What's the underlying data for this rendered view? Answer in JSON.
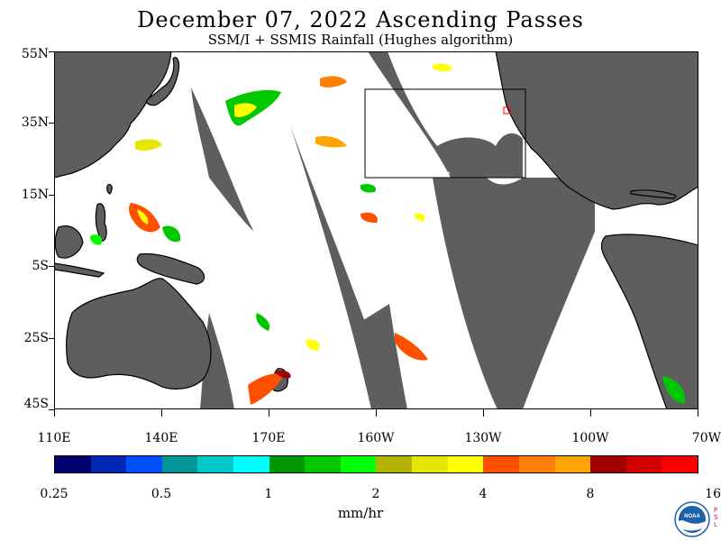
{
  "title": "December 07, 2022  Ascending Passes",
  "subtitle": "SSM/I + SSMIS Rainfall (Hughes algorithm)",
  "latitude_labels": [
    "55N",
    "35N",
    "15N",
    "5S",
    "25S",
    "45S"
  ],
  "longitude_labels": [
    "110E",
    "140E",
    "170E",
    "160W",
    "130W",
    "100W",
    "70W"
  ],
  "colorbar": {
    "colors": [
      "#00006e",
      "#0028b4",
      "#0050ff",
      "#009696",
      "#00c8c8",
      "#00ffff",
      "#009600",
      "#00c800",
      "#00ff00",
      "#b4b400",
      "#e6e600",
      "#ffff00",
      "#ff5000",
      "#ff8000",
      "#ffa500",
      "#a00000",
      "#d20000",
      "#ff0000"
    ],
    "labels": [
      "0.25",
      "0.5",
      "1",
      "2",
      "4",
      "8",
      "16"
    ],
    "units": "mm/hr"
  },
  "logo": {
    "text": "NOAA",
    "side_text": "PSL"
  },
  "map": {
    "land_color": "#5e5e5e",
    "gap_color": "#5e5e5e",
    "ocean_color": "#ffffff",
    "box_color": "#000000",
    "marker_color": "#ff0000"
  }
}
